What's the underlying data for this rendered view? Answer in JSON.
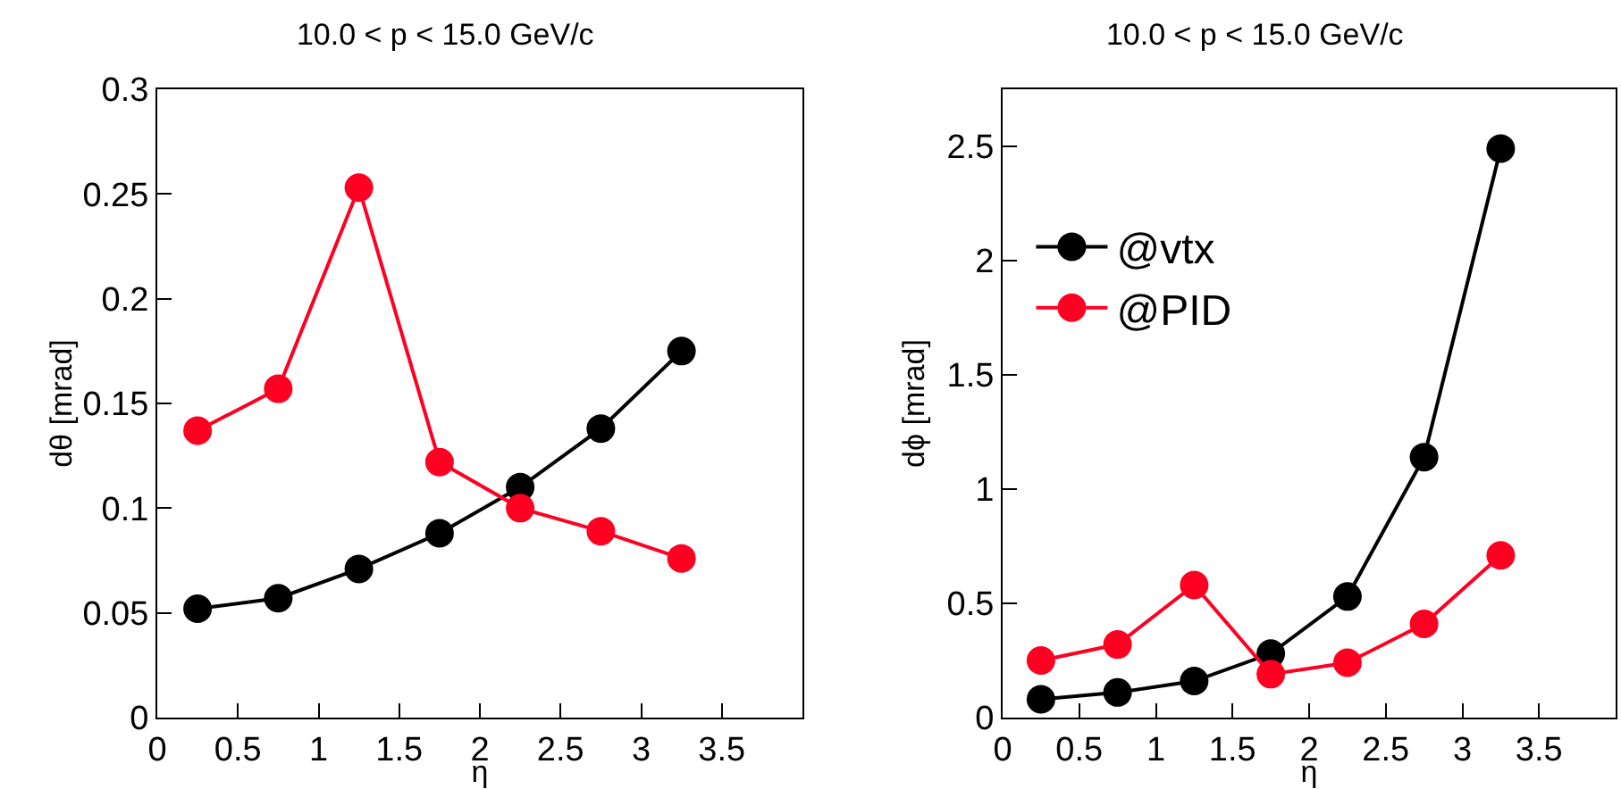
{
  "chart_data": [
    {
      "type": "line",
      "title": "10.0 < p < 15.0 GeV/c",
      "xlabel": "η",
      "ylabel": "dθ [mrad]",
      "x": [
        0.25,
        0.75,
        1.25,
        1.75,
        2.25,
        2.75,
        3.25
      ],
      "series": [
        {
          "color": "#000000",
          "values": [
            0.052,
            0.057,
            0.071,
            0.088,
            0.11,
            0.138,
            0.175
          ]
        },
        {
          "color": "#ff0022",
          "values": [
            0.137,
            0.157,
            0.253,
            0.122,
            0.1,
            0.089,
            0.076
          ]
        }
      ],
      "xlim": [
        0,
        4
      ],
      "xticks": [
        0,
        0.5,
        1,
        1.5,
        2,
        2.5,
        3,
        3.5
      ],
      "ylim": [
        0,
        0.3
      ],
      "yticks": [
        0,
        0.05,
        0.1,
        0.15,
        0.2,
        0.25,
        0.3
      ],
      "marker": "circle",
      "line_style": "solid",
      "grid": false,
      "legend": false
    },
    {
      "type": "line",
      "title": "10.0 < p < 15.0 GeV/c",
      "xlabel": "η",
      "ylabel": "dϕ [mrad]",
      "x": [
        0.25,
        0.75,
        1.25,
        1.75,
        2.25,
        2.75,
        3.25
      ],
      "series": [
        {
          "name": "@vtx",
          "color": "#000000",
          "values": [
            0.08,
            0.11,
            0.16,
            0.28,
            0.53,
            1.14,
            2.49
          ]
        },
        {
          "name": "@PID",
          "color": "#ff0022",
          "values": [
            0.25,
            0.32,
            0.58,
            0.19,
            0.24,
            0.41,
            0.71
          ]
        }
      ],
      "xlim": [
        0,
        4
      ],
      "xticks": [
        0,
        0.5,
        1,
        1.5,
        2,
        2.5,
        3,
        3.5
      ],
      "ylim": [
        0,
        2.75
      ],
      "yticks": [
        0,
        0.5,
        1,
        1.5,
        2,
        2.5
      ],
      "marker": "circle",
      "line_style": "solid",
      "grid": false,
      "legend": "left"
    }
  ]
}
